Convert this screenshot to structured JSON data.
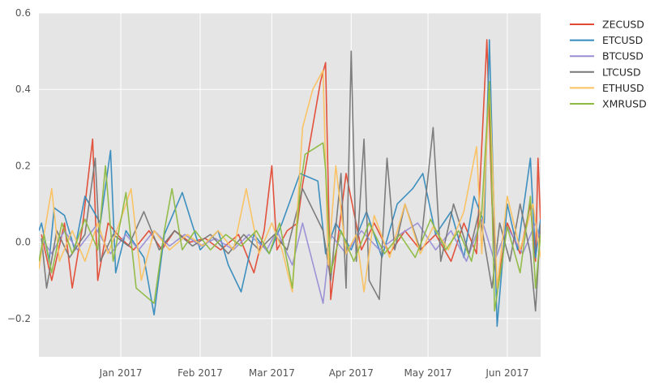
{
  "chart_data": {
    "type": "line",
    "x_axis": {
      "type": "date",
      "range": [
        "2016-11-30",
        "2017-06-14"
      ],
      "ticks": [
        {
          "date": "2017-01-01",
          "label": "Jan 2017"
        },
        {
          "date": "2017-02-01",
          "label": "Feb 2017"
        },
        {
          "date": "2017-03-01",
          "label": "Mar 2017"
        },
        {
          "date": "2017-04-01",
          "label": "Apr 2017"
        },
        {
          "date": "2017-05-01",
          "label": "May 2017"
        },
        {
          "date": "2017-06-01",
          "label": "Jun 2017"
        }
      ]
    },
    "y_axis": {
      "range": [
        -0.3,
        0.6
      ],
      "ticks": [
        {
          "value": -0.2,
          "label": "−0.2"
        },
        {
          "value": 0.0,
          "label": "0.0"
        },
        {
          "value": 0.2,
          "label": "0.2"
        },
        {
          "value": 0.4,
          "label": "0.4"
        },
        {
          "value": 0.6,
          "label": "0.6"
        }
      ]
    },
    "grid": true,
    "legend_position": "outside-right",
    "colors": {
      "background": "#E5E5E5",
      "grid": "#FFFFFF"
    },
    "series": [
      {
        "name": "ZECUSD",
        "color": "#E24A33",
        "points": [
          [
            "2016-12-01",
            0.02
          ],
          [
            "2016-12-05",
            -0.1
          ],
          [
            "2016-12-10",
            0.05
          ],
          [
            "2016-12-13",
            -0.12
          ],
          [
            "2016-12-17",
            0.04
          ],
          [
            "2016-12-21",
            0.27
          ],
          [
            "2016-12-23",
            -0.1
          ],
          [
            "2016-12-27",
            0.05
          ],
          [
            "2017-01-01",
            0.01
          ],
          [
            "2017-01-06",
            -0.02
          ],
          [
            "2017-01-12",
            0.03
          ],
          [
            "2017-01-17",
            -0.02
          ],
          [
            "2017-01-22",
            0.03
          ],
          [
            "2017-01-28",
            0.0
          ],
          [
            "2017-02-03",
            0.01
          ],
          [
            "2017-02-09",
            -0.02
          ],
          [
            "2017-02-16",
            0.02
          ],
          [
            "2017-02-22",
            -0.08
          ],
          [
            "2017-02-26",
            0.03
          ],
          [
            "2017-03-01",
            0.2
          ],
          [
            "2017-03-03",
            -0.02
          ],
          [
            "2017-03-07",
            0.03
          ],
          [
            "2017-03-11",
            0.05
          ],
          [
            "2017-03-13",
            0.15
          ],
          [
            "2017-03-20",
            0.42
          ],
          [
            "2017-03-22",
            0.47
          ],
          [
            "2017-03-24",
            -0.15
          ],
          [
            "2017-03-27",
            0.02
          ],
          [
            "2017-03-30",
            0.18
          ],
          [
            "2017-04-05",
            -0.02
          ],
          [
            "2017-04-10",
            0.05
          ],
          [
            "2017-04-16",
            -0.03
          ],
          [
            "2017-04-22",
            0.03
          ],
          [
            "2017-04-28",
            -0.02
          ],
          [
            "2017-05-04",
            0.02
          ],
          [
            "2017-05-10",
            -0.05
          ],
          [
            "2017-05-15",
            0.05
          ],
          [
            "2017-05-20",
            -0.03
          ],
          [
            "2017-05-24",
            0.53
          ],
          [
            "2017-05-26",
            0.1
          ],
          [
            "2017-05-28",
            -0.12
          ],
          [
            "2017-06-01",
            0.05
          ],
          [
            "2017-06-06",
            -0.03
          ],
          [
            "2017-06-10",
            0.1
          ],
          [
            "2017-06-12",
            -0.05
          ],
          [
            "2017-06-13",
            0.22
          ],
          [
            "2017-06-14",
            0.05
          ]
        ]
      },
      {
        "name": "ETCUSD",
        "color": "#348ABD",
        "points": [
          [
            "2016-11-30",
            0.03
          ],
          [
            "2016-12-01",
            0.05
          ],
          [
            "2016-12-04",
            -0.05
          ],
          [
            "2016-12-06",
            0.09
          ],
          [
            "2016-12-10",
            0.07
          ],
          [
            "2016-12-14",
            -0.02
          ],
          [
            "2016-12-18",
            0.12
          ],
          [
            "2016-12-24",
            0.05
          ],
          [
            "2016-12-28",
            0.24
          ],
          [
            "2016-12-30",
            -0.08
          ],
          [
            "2017-01-03",
            0.03
          ],
          [
            "2017-01-10",
            -0.04
          ],
          [
            "2017-01-14",
            -0.19
          ],
          [
            "2017-01-18",
            0.02
          ],
          [
            "2017-01-25",
            0.13
          ],
          [
            "2017-02-01",
            -0.02
          ],
          [
            "2017-02-08",
            0.03
          ],
          [
            "2017-02-12",
            -0.06
          ],
          [
            "2017-02-17",
            -0.13
          ],
          [
            "2017-02-22",
            0.02
          ],
          [
            "2017-02-28",
            -0.03
          ],
          [
            "2017-03-05",
            0.05
          ],
          [
            "2017-03-12",
            0.18
          ],
          [
            "2017-03-19",
            0.16
          ],
          [
            "2017-03-22",
            -0.03
          ],
          [
            "2017-03-26",
            0.05
          ],
          [
            "2017-04-01",
            -0.02
          ],
          [
            "2017-04-07",
            0.08
          ],
          [
            "2017-04-13",
            -0.04
          ],
          [
            "2017-04-19",
            0.1
          ],
          [
            "2017-04-25",
            0.14
          ],
          [
            "2017-04-29",
            0.18
          ],
          [
            "2017-05-04",
            0.02
          ],
          [
            "2017-05-10",
            0.08
          ],
          [
            "2017-05-15",
            -0.04
          ],
          [
            "2017-05-19",
            0.12
          ],
          [
            "2017-05-23",
            0.05
          ],
          [
            "2017-05-25",
            0.53
          ],
          [
            "2017-05-28",
            -0.22
          ],
          [
            "2017-06-01",
            0.1
          ],
          [
            "2017-06-05",
            -0.02
          ],
          [
            "2017-06-10",
            0.22
          ],
          [
            "2017-06-12",
            -0.04
          ],
          [
            "2017-06-14",
            0.06
          ]
        ]
      },
      {
        "name": "BTCUSD",
        "color": "#988ED5",
        "points": [
          [
            "2016-12-01",
            0.01
          ],
          [
            "2016-12-05",
            -0.03
          ],
          [
            "2016-12-10",
            0.03
          ],
          [
            "2016-12-15",
            -0.02
          ],
          [
            "2016-12-22",
            0.04
          ],
          [
            "2016-12-28",
            -0.03
          ],
          [
            "2017-01-03",
            0.02
          ],
          [
            "2017-01-08",
            -0.02
          ],
          [
            "2017-01-14",
            0.03
          ],
          [
            "2017-01-20",
            -0.01
          ],
          [
            "2017-01-26",
            0.02
          ],
          [
            "2017-02-01",
            -0.01
          ],
          [
            "2017-02-07",
            0.01
          ],
          [
            "2017-02-14",
            -0.02
          ],
          [
            "2017-02-20",
            0.02
          ],
          [
            "2017-02-27",
            -0.02
          ],
          [
            "2017-03-03",
            0.03
          ],
          [
            "2017-03-09",
            -0.06
          ],
          [
            "2017-03-13",
            0.05
          ],
          [
            "2017-03-21",
            -0.16
          ],
          [
            "2017-03-24",
            0.02
          ],
          [
            "2017-03-30",
            -0.03
          ],
          [
            "2017-04-05",
            0.03
          ],
          [
            "2017-04-12",
            -0.02
          ],
          [
            "2017-04-20",
            0.02
          ],
          [
            "2017-04-27",
            0.05
          ],
          [
            "2017-05-04",
            -0.02
          ],
          [
            "2017-05-10",
            0.03
          ],
          [
            "2017-05-16",
            -0.05
          ],
          [
            "2017-05-22",
            0.06
          ],
          [
            "2017-05-27",
            -0.05
          ],
          [
            "2017-06-01",
            0.04
          ],
          [
            "2017-06-07",
            -0.03
          ],
          [
            "2017-06-12",
            0.05
          ],
          [
            "2017-06-14",
            0.0
          ]
        ]
      },
      {
        "name": "LTCUSD",
        "color": "#777777",
        "points": [
          [
            "2016-12-01",
            0.01
          ],
          [
            "2016-12-03",
            -0.12
          ],
          [
            "2016-12-07",
            0.03
          ],
          [
            "2016-12-12",
            -0.04
          ],
          [
            "2016-12-18",
            0.02
          ],
          [
            "2016-12-22",
            0.22
          ],
          [
            "2016-12-24",
            -0.05
          ],
          [
            "2016-12-29",
            0.02
          ],
          [
            "2017-01-04",
            -0.01
          ],
          [
            "2017-01-10",
            0.08
          ],
          [
            "2017-01-16",
            -0.02
          ],
          [
            "2017-01-22",
            0.03
          ],
          [
            "2017-01-29",
            -0.01
          ],
          [
            "2017-02-05",
            0.02
          ],
          [
            "2017-02-12",
            -0.03
          ],
          [
            "2017-02-18",
            0.02
          ],
          [
            "2017-02-24",
            -0.02
          ],
          [
            "2017-03-02",
            0.02
          ],
          [
            "2017-03-07",
            -0.02
          ],
          [
            "2017-03-13",
            0.14
          ],
          [
            "2017-03-21",
            0.03
          ],
          [
            "2017-03-24",
            -0.1
          ],
          [
            "2017-03-28",
            0.18
          ],
          [
            "2017-03-30",
            -0.12
          ],
          [
            "2017-04-01",
            0.5
          ],
          [
            "2017-04-03",
            -0.05
          ],
          [
            "2017-04-06",
            0.27
          ],
          [
            "2017-04-08",
            -0.1
          ],
          [
            "2017-04-12",
            -0.15
          ],
          [
            "2017-04-15",
            0.22
          ],
          [
            "2017-04-18",
            -0.02
          ],
          [
            "2017-04-22",
            0.1
          ],
          [
            "2017-04-28",
            -0.02
          ],
          [
            "2017-05-03",
            0.3
          ],
          [
            "2017-05-06",
            -0.05
          ],
          [
            "2017-05-11",
            0.1
          ],
          [
            "2017-05-17",
            -0.03
          ],
          [
            "2017-05-21",
            0.08
          ],
          [
            "2017-05-26",
            -0.12
          ],
          [
            "2017-05-29",
            0.05
          ],
          [
            "2017-06-02",
            -0.05
          ],
          [
            "2017-06-06",
            0.1
          ],
          [
            "2017-06-10",
            -0.03
          ],
          [
            "2017-06-12",
            -0.18
          ],
          [
            "2017-06-14",
            0.05
          ]
        ]
      },
      {
        "name": "ETHUSD",
        "color": "#FBC15E",
        "points": [
          [
            "2016-11-30",
            -0.07
          ],
          [
            "2016-12-02",
            0.02
          ],
          [
            "2016-12-05",
            0.14
          ],
          [
            "2016-12-08",
            -0.05
          ],
          [
            "2016-12-13",
            0.03
          ],
          [
            "2016-12-18",
            -0.05
          ],
          [
            "2016-12-23",
            0.05
          ],
          [
            "2016-12-27",
            -0.03
          ],
          [
            "2017-01-01",
            0.06
          ],
          [
            "2017-01-05",
            0.14
          ],
          [
            "2017-01-09",
            -0.1
          ],
          [
            "2017-01-14",
            0.03
          ],
          [
            "2017-01-20",
            -0.02
          ],
          [
            "2017-01-27",
            0.02
          ],
          [
            "2017-02-02",
            -0.01
          ],
          [
            "2017-02-08",
            0.03
          ],
          [
            "2017-02-14",
            -0.02
          ],
          [
            "2017-02-19",
            0.14
          ],
          [
            "2017-02-24",
            -0.03
          ],
          [
            "2017-03-01",
            0.05
          ],
          [
            "2017-03-05",
            -0.02
          ],
          [
            "2017-03-09",
            -0.13
          ],
          [
            "2017-03-13",
            0.3
          ],
          [
            "2017-03-17",
            0.4
          ],
          [
            "2017-03-21",
            0.45
          ],
          [
            "2017-03-23",
            -0.06
          ],
          [
            "2017-03-26",
            0.2
          ],
          [
            "2017-03-30",
            -0.03
          ],
          [
            "2017-04-03",
            0.02
          ],
          [
            "2017-04-06",
            -0.13
          ],
          [
            "2017-04-10",
            0.07
          ],
          [
            "2017-04-16",
            -0.04
          ],
          [
            "2017-04-22",
            0.1
          ],
          [
            "2017-04-28",
            -0.03
          ],
          [
            "2017-05-03",
            0.04
          ],
          [
            "2017-05-09",
            -0.02
          ],
          [
            "2017-05-15",
            0.08
          ],
          [
            "2017-05-20",
            0.25
          ],
          [
            "2017-05-22",
            -0.03
          ],
          [
            "2017-05-25",
            0.42
          ],
          [
            "2017-05-28",
            -0.12
          ],
          [
            "2017-06-01",
            0.12
          ],
          [
            "2017-06-06",
            -0.02
          ],
          [
            "2017-06-11",
            0.1
          ],
          [
            "2017-06-14",
            -0.04
          ]
        ]
      },
      {
        "name": "XMRUSD",
        "color": "#8EBA42",
        "points": [
          [
            "2016-11-30",
            -0.05
          ],
          [
            "2016-12-02",
            0.02
          ],
          [
            "2016-12-05",
            -0.08
          ],
          [
            "2016-12-09",
            0.05
          ],
          [
            "2016-12-13",
            -0.03
          ],
          [
            "2016-12-18",
            0.06
          ],
          [
            "2016-12-23",
            -0.02
          ],
          [
            "2016-12-26",
            0.2
          ],
          [
            "2016-12-29",
            -0.05
          ],
          [
            "2017-01-03",
            0.13
          ],
          [
            "2017-01-07",
            -0.12
          ],
          [
            "2017-01-14",
            -0.16
          ],
          [
            "2017-01-18",
            0.03
          ],
          [
            "2017-01-21",
            0.14
          ],
          [
            "2017-01-25",
            -0.02
          ],
          [
            "2017-01-30",
            0.03
          ],
          [
            "2017-02-05",
            -0.02
          ],
          [
            "2017-02-11",
            0.02
          ],
          [
            "2017-02-17",
            -0.01
          ],
          [
            "2017-02-23",
            0.03
          ],
          [
            "2017-02-28",
            -0.03
          ],
          [
            "2017-03-04",
            0.05
          ],
          [
            "2017-03-09",
            -0.12
          ],
          [
            "2017-03-12",
            0.14
          ],
          [
            "2017-03-14",
            0.23
          ],
          [
            "2017-03-21",
            0.26
          ],
          [
            "2017-03-22",
            0.19
          ],
          [
            "2017-03-24",
            -0.08
          ],
          [
            "2017-03-28",
            0.03
          ],
          [
            "2017-04-02",
            -0.05
          ],
          [
            "2017-04-08",
            0.05
          ],
          [
            "2017-04-14",
            -0.03
          ],
          [
            "2017-04-20",
            0.02
          ],
          [
            "2017-04-26",
            -0.04
          ],
          [
            "2017-05-02",
            0.06
          ],
          [
            "2017-05-08",
            -0.02
          ],
          [
            "2017-05-13",
            0.03
          ],
          [
            "2017-05-18",
            -0.05
          ],
          [
            "2017-05-22",
            0.08
          ],
          [
            "2017-05-25",
            0.42
          ],
          [
            "2017-05-27",
            -0.18
          ],
          [
            "2017-06-01",
            0.04
          ],
          [
            "2017-06-06",
            -0.08
          ],
          [
            "2017-06-10",
            0.12
          ],
          [
            "2017-06-12",
            -0.12
          ],
          [
            "2017-06-14",
            0.02
          ]
        ]
      }
    ]
  }
}
